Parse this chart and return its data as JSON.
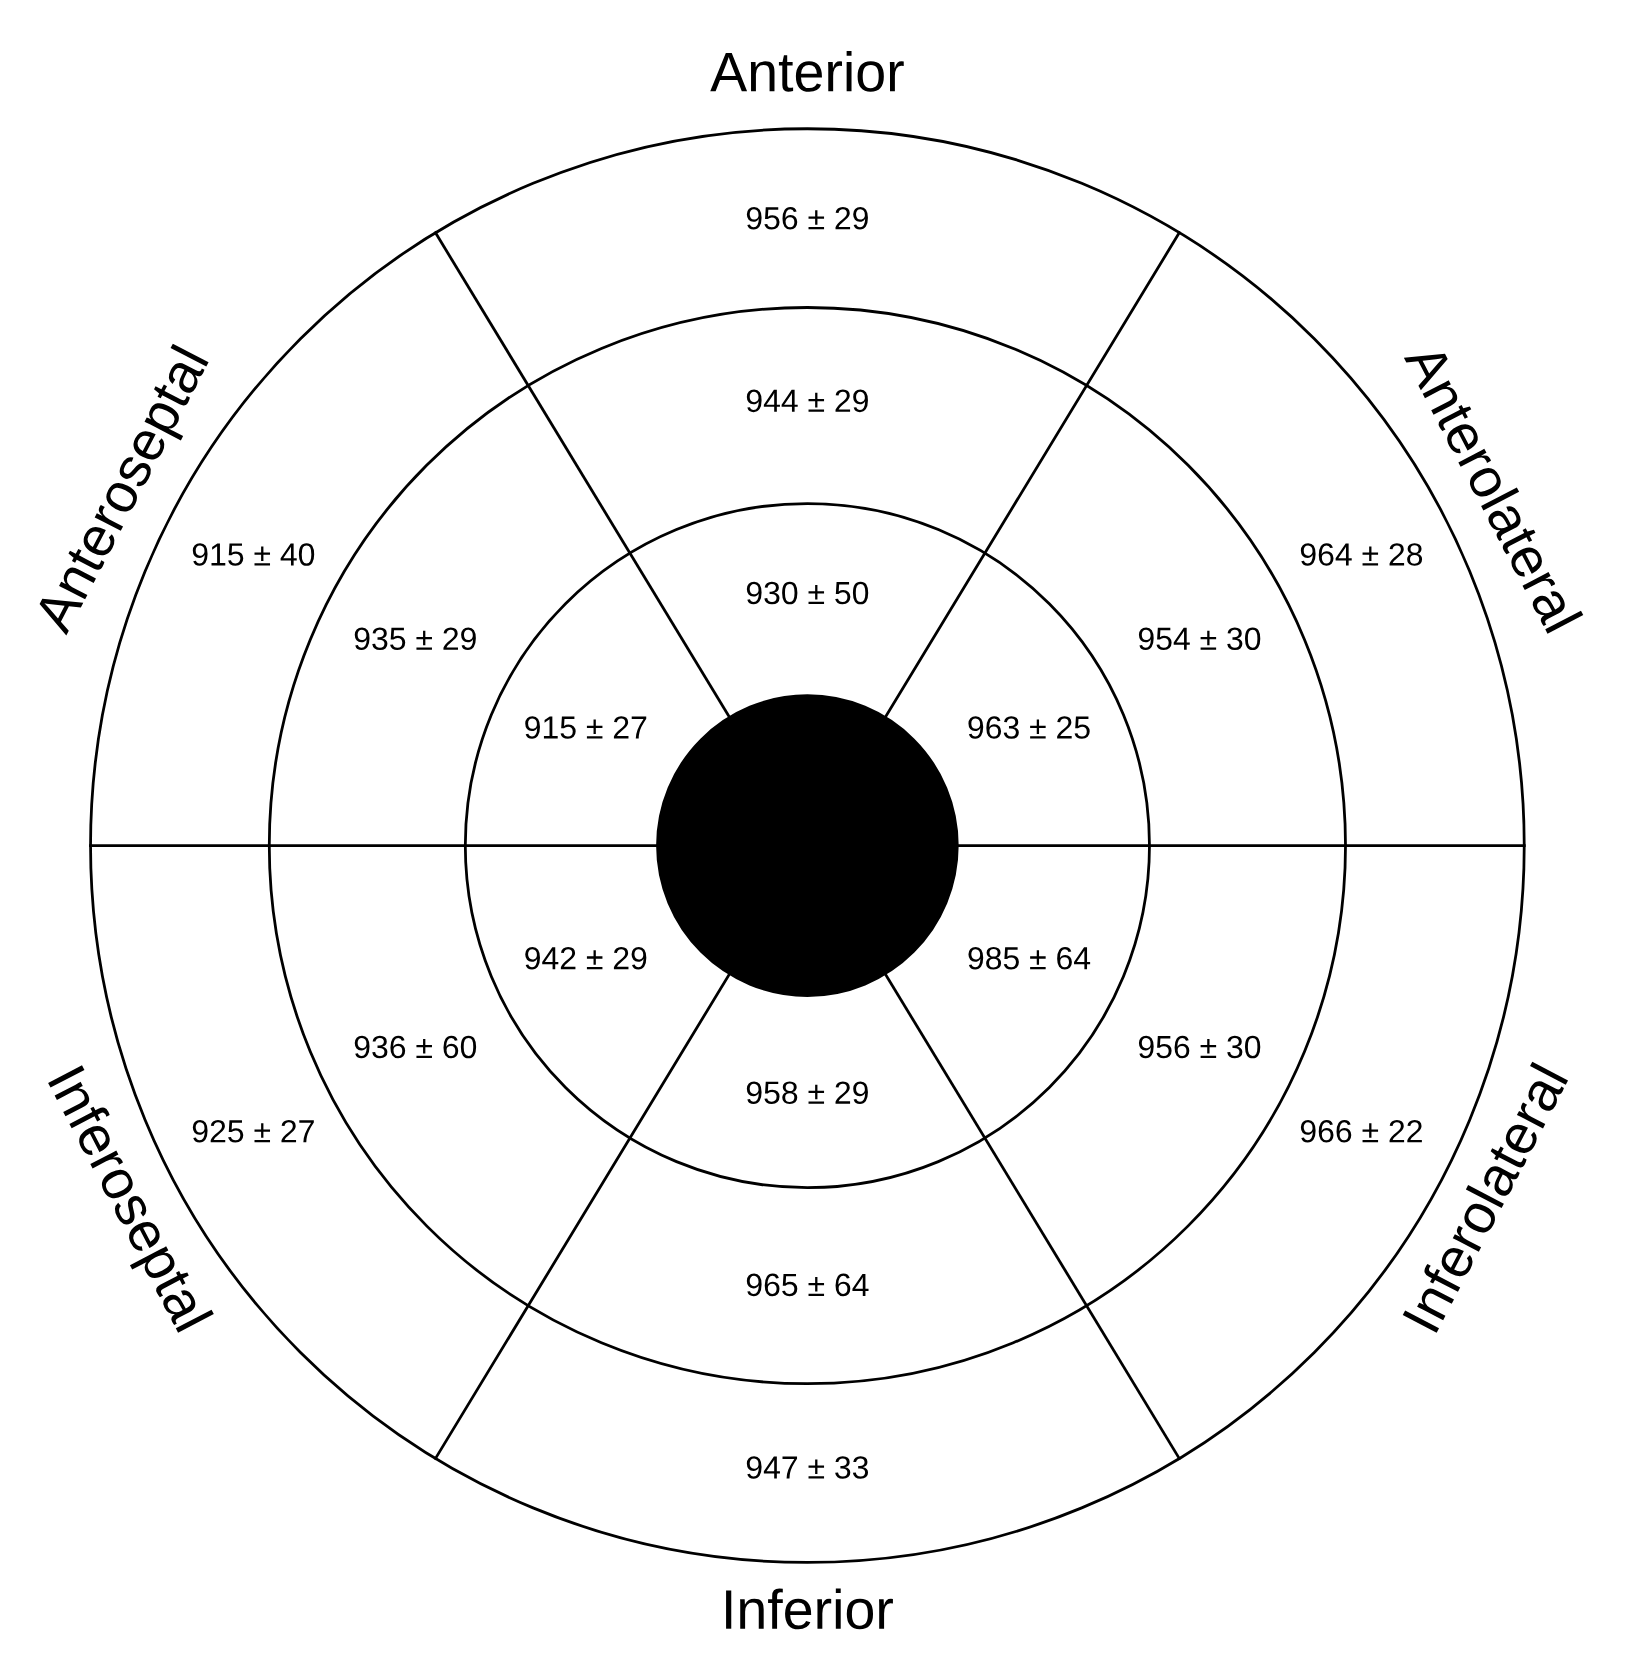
{
  "chart_data": {
    "type": "other",
    "categories": [
      "Anterior",
      "Anterolateral",
      "Inferolateral",
      "Inferior",
      "Inferoseptal",
      "Anteroseptal"
    ],
    "series": [
      {
        "values": [
          956,
          964,
          966,
          947,
          925,
          915
        ],
        "value_labels": [
          "956 ± 29",
          "964 ± 28",
          "966 ± 22",
          "947 ± 33",
          "925 ± 27",
          "915 ± 40"
        ]
      },
      {
        "values": [
          944,
          954,
          956,
          965,
          936,
          935
        ],
        "value_labels": [
          "944 ± 29",
          "954 ± 30",
          "956 ± 30",
          "965 ± 64",
          "936 ± 60",
          "935 ± 29"
        ]
      },
      {
        "values": [
          930,
          963,
          985,
          958,
          942,
          915
        ],
        "value_labels": [
          "930 ± 50",
          "963 ± 25",
          "985 ± 64",
          "958 ± 29",
          "942 ± 29",
          "915 ± 27"
        ]
      }
    ]
  }
}
